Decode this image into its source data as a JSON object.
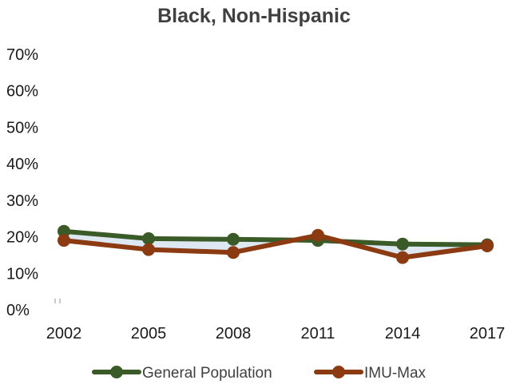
{
  "chart_data": {
    "type": "line",
    "title": "Black, Non-Hispanic",
    "xlabel": "",
    "ylabel": "",
    "categories": [
      "2002",
      "2005",
      "2008",
      "2011",
      "2014",
      "2017"
    ],
    "y_tick_labels": [
      "0%",
      "10%",
      "20%",
      "30%",
      "40%",
      "50%",
      "60%",
      "70%"
    ],
    "ylim": [
      0,
      70
    ],
    "grid": false,
    "legend_position": "bottom",
    "series": [
      {
        "name": "General Population",
        "color": "#3a5a27",
        "values": [
          21.5,
          19.5,
          19.3,
          19.0,
          18.0,
          17.8
        ]
      },
      {
        "name": "IMU-Max",
        "color": "#8b3a11",
        "values": [
          19.0,
          16.5,
          15.7,
          20.4,
          14.3,
          17.5
        ]
      }
    ],
    "fill_between_color": "#dde8f3"
  }
}
